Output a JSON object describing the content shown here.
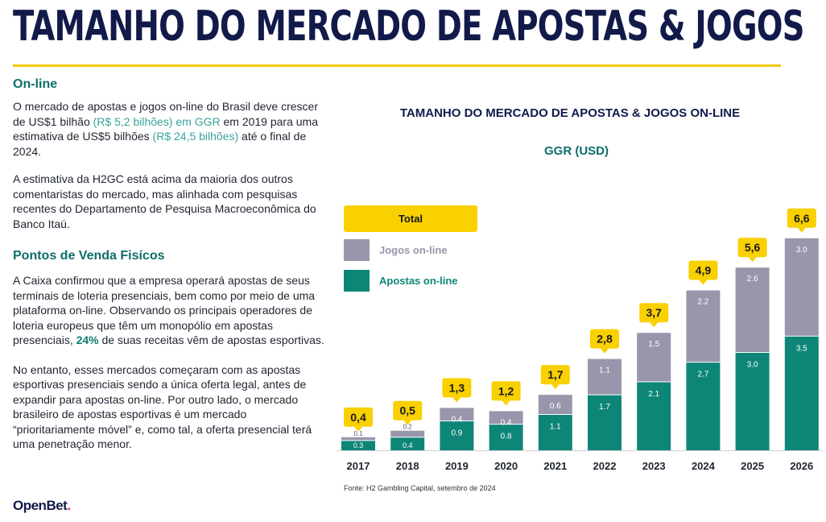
{
  "header": {
    "title": "TAMANHO DO MERCADO DE APOSTAS & JOGOS"
  },
  "online": {
    "heading": "On-line",
    "p1_a": "O mercado de apostas e jogos on-line do Brasil deve crescer de US$1 bilhão ",
    "p1_hl1": "(R$ 5,2 bilhões) em GGR",
    "p1_b": " em 2019 para uma estimativa de US$5 bilhões ",
    "p1_hl2": "(R$ 24,5 bilhões)",
    "p1_c": " até o final de 2024.",
    "p2": "A estimativa da H2GC está acima da maioria dos outros comentaristas do mercado, mas alinhada com pesquisas recentes do Departamento de Pesquisa Macroeconômica do Banco Itaú."
  },
  "physical": {
    "heading": "Pontos de Venda Fisícos",
    "p1_a": "A Caixa confirmou que a empresa operará apostas de seus terminais de loteria presenciais, bem como por meio de uma plataforma on-line. Observando os principais operadores de loteria europeus que têm um monopólio em apostas presenciais, ",
    "p1_hl": "24%",
    "p1_b": " de suas receitas vêm de apostas esportivas.",
    "p2": "No entanto, esses mercados começaram com as apostas esportivas presenciais sendo a única oferta legal, antes de expandir para apostas on-line. Por outro lado, o mercado brasileiro de apostas esportivas é um mercado “prioritariamente móvel” e, como tal, a oferta presencial terá uma penetração menor."
  },
  "chart_data": {
    "type": "bar",
    "stacked": true,
    "title": "TAMANHO DO MERCADO DE APOSTAS & JOGOS ON-LINE",
    "subtitle": "GGR (USD)",
    "categories": [
      "2017",
      "2018",
      "2019",
      "2020",
      "2021",
      "2022",
      "2023",
      "2024",
      "2025",
      "2026"
    ],
    "series": [
      {
        "name": "Apostas on-line",
        "color": "#0e8677",
        "values": [
          0.3,
          0.4,
          0.9,
          0.8,
          1.1,
          1.7,
          2.1,
          2.7,
          3.0,
          3.5
        ],
        "labels": [
          "0.3",
          "0.4",
          "0.9",
          "0.8",
          "1.1",
          "1.7",
          "2.1",
          "2.7",
          "3.0",
          "3.5"
        ]
      },
      {
        "name": "Jogos on-line",
        "color": "#9896aa",
        "values": [
          0.1,
          0.2,
          0.4,
          0.4,
          0.6,
          1.1,
          1.5,
          2.2,
          2.6,
          3.0
        ],
        "labels": [
          "0.1",
          "0.2",
          "0.4",
          "0.4",
          "0.6",
          "1.1",
          "1.5",
          "2.2",
          "2.6",
          "3.0"
        ]
      }
    ],
    "totals": [
      0.4,
      0.5,
      1.3,
      1.2,
      1.7,
      2.8,
      3.7,
      4.9,
      5.6,
      6.6
    ],
    "total_labels": [
      "0,4",
      "0,5",
      "1,3",
      "1,2",
      "1,7",
      "2,8",
      "3,7",
      "4,9",
      "5,6",
      "6,6"
    ],
    "legend": {
      "total_label": "Total",
      "total_color": "#f9d000",
      "position": "top-left"
    },
    "grid": false
  },
  "source": "Fonte: H2 Gambling Capital, setembro de 2024",
  "logo": {
    "text": "OpenBet",
    "dot": "."
  }
}
